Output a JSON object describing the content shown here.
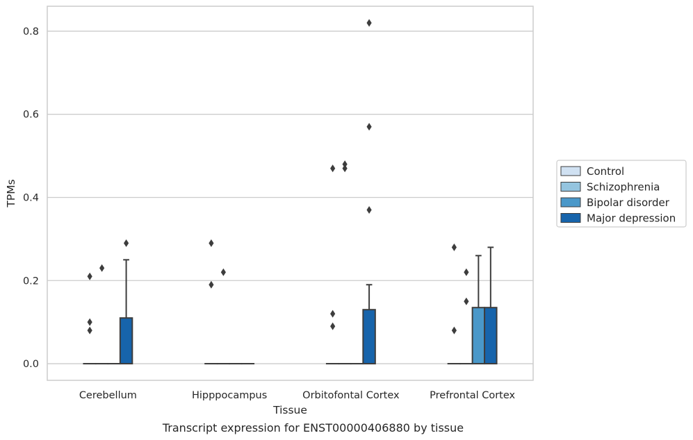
{
  "chart_data": {
    "type": "box",
    "caption": "Transcript expression for ENST00000406880 by tissue",
    "xlabel": "Tissue",
    "ylabel": "TPMs",
    "ylim": [
      -0.04,
      0.86
    ],
    "yticks": [
      0.0,
      0.2,
      0.4,
      0.6,
      0.8
    ],
    "ytick_labels": [
      "0.0",
      "0.2",
      "0.4",
      "0.6",
      "0.8"
    ],
    "grid": true,
    "legend_position": "right",
    "categories": [
      "Cerebellum",
      "Hipppocampus",
      "Orbitofontal Cortex",
      "Prefrontal Cortex"
    ],
    "series": [
      {
        "name": "Control",
        "color": "#d0e1f2",
        "boxes": [
          {
            "q1": 0,
            "median": 0,
            "q3": 0,
            "whisker_low": 0,
            "whisker_high": 0,
            "outliers": [
              0.21,
              0.1,
              0.08
            ]
          },
          {
            "q1": 0,
            "median": 0,
            "q3": 0,
            "whisker_low": 0,
            "whisker_high": 0,
            "outliers": [
              0.29,
              0.19
            ]
          },
          {
            "q1": 0,
            "median": 0,
            "q3": 0,
            "whisker_low": 0,
            "whisker_high": 0,
            "outliers": [
              0.47,
              0.12,
              0.09
            ]
          },
          {
            "q1": 0,
            "median": 0,
            "q3": 0,
            "whisker_low": 0,
            "whisker_high": 0,
            "outliers": [
              0.28,
              0.08
            ]
          }
        ]
      },
      {
        "name": "Schizophrenia",
        "color": "#94c4df",
        "boxes": [
          {
            "q1": 0,
            "median": 0,
            "q3": 0,
            "whisker_low": 0,
            "whisker_high": 0,
            "outliers": [
              0.23
            ]
          },
          {
            "q1": 0,
            "median": 0,
            "q3": 0,
            "whisker_low": 0,
            "whisker_high": 0,
            "outliers": [
              0.22
            ]
          },
          {
            "q1": 0,
            "median": 0,
            "q3": 0,
            "whisker_low": 0,
            "whisker_high": 0,
            "outliers": [
              0.48,
              0.47
            ]
          },
          {
            "q1": 0,
            "median": 0,
            "q3": 0,
            "whisker_low": 0,
            "whisker_high": 0,
            "outliers": [
              0.22,
              0.15
            ]
          }
        ]
      },
      {
        "name": "Bipolar disorder",
        "color": "#4a98c9",
        "boxes": [
          {
            "q1": 0,
            "median": 0,
            "q3": 0,
            "whisker_low": 0,
            "whisker_high": 0,
            "outliers": []
          },
          {
            "q1": 0,
            "median": 0,
            "q3": 0,
            "whisker_low": 0,
            "whisker_high": 0,
            "outliers": []
          },
          {
            "q1": 0,
            "median": 0,
            "q3": 0,
            "whisker_low": 0,
            "whisker_high": 0,
            "outliers": []
          },
          {
            "q1": 0,
            "median": 0,
            "q3": 0.135,
            "whisker_low": 0,
            "whisker_high": 0.26,
            "outliers": []
          }
        ]
      },
      {
        "name": "Major depression",
        "color": "#1764ab",
        "boxes": [
          {
            "q1": 0,
            "median": 0,
            "q3": 0.11,
            "whisker_low": 0,
            "whisker_high": 0.25,
            "outliers": [
              0.29
            ]
          },
          {
            "q1": 0,
            "median": 0,
            "q3": 0,
            "whisker_low": 0,
            "whisker_high": 0,
            "outliers": []
          },
          {
            "q1": 0,
            "median": 0,
            "q3": 0.13,
            "whisker_low": 0,
            "whisker_high": 0.19,
            "outliers": [
              0.82,
              0.57,
              0.37
            ]
          },
          {
            "q1": 0,
            "median": 0,
            "q3": 0.135,
            "whisker_low": 0,
            "whisker_high": 0.28,
            "outliers": []
          }
        ]
      }
    ]
  }
}
